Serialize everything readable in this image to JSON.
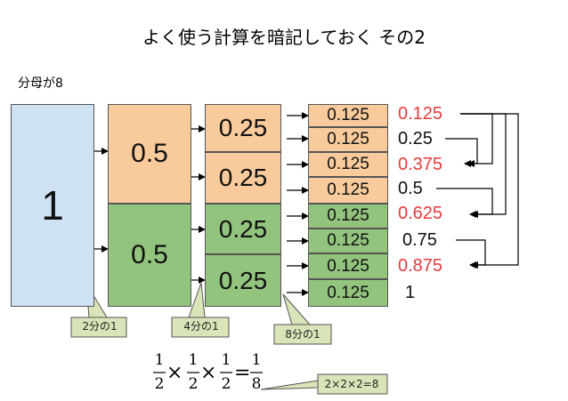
{
  "title": "よく使う計算を暗記しておく その2",
  "subtitle": "分母が8",
  "colors": {
    "whole": "#cfe2f3",
    "orange": "#f9cb9c",
    "green": "#93c47d",
    "highlight": "#e83a3a",
    "callout": "#d9e4b8"
  },
  "levels": {
    "whole": "1",
    "halves": [
      "0.5",
      "0.5"
    ],
    "quarters": [
      "0.25",
      "0.25",
      "0.25",
      "0.25"
    ],
    "eighths": [
      "0.125",
      "0.125",
      "0.125",
      "0.125",
      "0.125",
      "0.125",
      "0.125",
      "0.125"
    ]
  },
  "sums": [
    {
      "label": "0.125",
      "highlight": true
    },
    {
      "label": "0.25",
      "highlight": false
    },
    {
      "label": "0.375",
      "highlight": true
    },
    {
      "label": "0.5",
      "highlight": false
    },
    {
      "label": "0.625",
      "highlight": true
    },
    {
      "label": "0.75",
      "highlight": false
    },
    {
      "label": "0.875",
      "highlight": true
    },
    {
      "label": "1",
      "highlight": false
    }
  ],
  "callouts": [
    "2分の1",
    "4分の1",
    "8分の1",
    "2×2×2=8"
  ],
  "formula": {
    "numerator": "1",
    "denominators": [
      "2",
      "2",
      "2",
      "8"
    ],
    "times": "×",
    "equals": "="
  }
}
